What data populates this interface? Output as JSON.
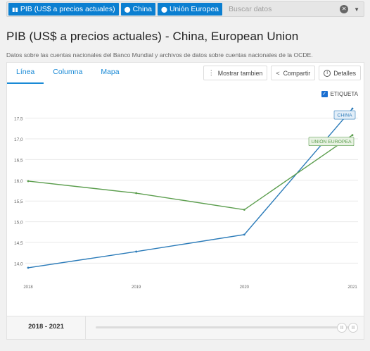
{
  "search": {
    "chips": [
      {
        "label": "PIB (US$ a precios actuales)",
        "icon": "bar-chart-icon"
      },
      {
        "label": "China",
        "icon": "map-pin-icon"
      },
      {
        "label": "Unión Europea",
        "icon": "map-pin-icon"
      }
    ],
    "placeholder": "Buscar datos"
  },
  "page": {
    "title": "PIB (US$ a precios actuales) - China, European Union",
    "subtitle": "Datos sobre las cuentas nacionales del Banco Mundial y archivos de datos sobre cuentas nacionales de la OCDE."
  },
  "tabs": [
    "Línea",
    "Columna",
    "Mapa"
  ],
  "actions": {
    "more": "Mostrar tambien",
    "share": "Compartir",
    "details": "Detalles"
  },
  "label_toggle": "ETIQUETA",
  "colors": {
    "accent": "#1a8ad6",
    "china": "#2b7bb9",
    "eu": "#5c9e4e"
  },
  "chart_data": {
    "type": "line",
    "x": [
      2018,
      2019,
      2020,
      2021
    ],
    "ylim": [
      13.65,
      17.85
    ],
    "yticks": [
      "14,0",
      "14,5",
      "15,0",
      "15,5",
      "16,0",
      "16,5",
      "17,0",
      "17,5"
    ],
    "ytick_values": [
      14.0,
      14.5,
      15.0,
      15.5,
      16.0,
      16.5,
      17.0,
      17.5
    ],
    "series": [
      {
        "name": "CHINA",
        "values": [
          13.89,
          14.28,
          14.69,
          17.73
        ]
      },
      {
        "name": "UNIÓN EUROPEA",
        "values": [
          15.98,
          15.69,
          15.29,
          17.09
        ]
      }
    ],
    "grid": true
  },
  "footer": {
    "range": "2018 - 2021"
  }
}
